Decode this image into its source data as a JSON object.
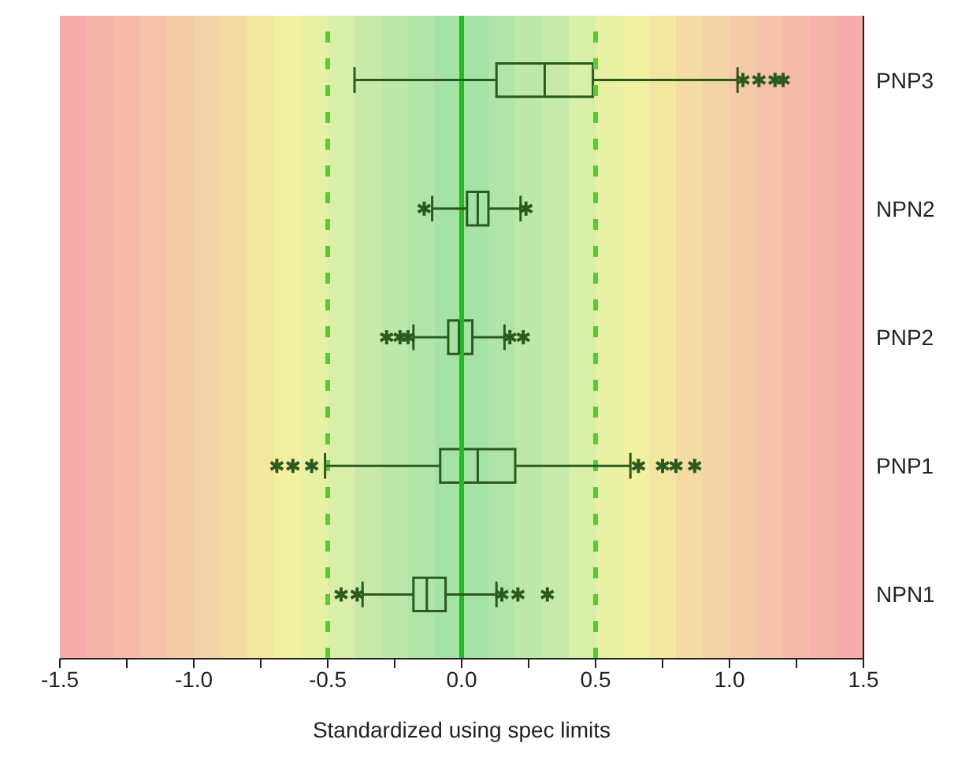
{
  "chart_data": {
    "type": "box",
    "orientation": "horizontal",
    "categories": [
      "PNP3",
      "NPN2",
      "PNP2",
      "PNP1",
      "NPN1"
    ],
    "boxes": [
      {
        "low": -0.4,
        "q1": 0.13,
        "median": 0.31,
        "q3": 0.49,
        "high": 1.03,
        "outliers": [
          1.05,
          1.11,
          1.17,
          1.2
        ]
      },
      {
        "low": -0.11,
        "q1": 0.02,
        "median": 0.06,
        "q3": 0.1,
        "high": 0.22,
        "outliers": [
          -0.14,
          0.24
        ]
      },
      {
        "low": -0.18,
        "q1": -0.05,
        "median": -0.01,
        "q3": 0.04,
        "high": 0.16,
        "outliers": [
          -0.28,
          -0.23,
          -0.2,
          0.18,
          0.23
        ]
      },
      {
        "low": -0.51,
        "q1": -0.08,
        "median": 0.06,
        "q3": 0.2,
        "high": 0.63,
        "outliers": [
          -0.69,
          -0.63,
          -0.56,
          0.66,
          0.75,
          0.8,
          0.87
        ]
      },
      {
        "low": -0.37,
        "q1": -0.18,
        "median": -0.13,
        "q3": -0.06,
        "high": 0.13,
        "outliers": [
          -0.45,
          -0.39,
          0.15,
          0.21,
          0.32
        ]
      }
    ],
    "color": "#2b5a1f",
    "xlim": [
      -1.5,
      1.5
    ],
    "xticks": [
      -1.5,
      {
        "value": -1.25,
        "label": null
      },
      {
        "value": -1.0,
        "label": "-1.0"
      },
      {
        "value": -0.75,
        "label": null
      },
      -0.5,
      {
        "value": -0.25,
        "label": null
      },
      {
        "value": 0.0,
        "label": "0.0"
      },
      {
        "value": 0.25,
        "label": null
      },
      0.5,
      {
        "value": 0.75,
        "label": null
      },
      {
        "value": 1.0,
        "label": "1.0"
      },
      {
        "value": 1.25,
        "label": null
      },
      1.5
    ],
    "xlabel": "Standardized using spec limits",
    "ref_lines": [
      {
        "axis": "x",
        "value": 0,
        "color": "#22bb22",
        "line_style": "solid"
      },
      {
        "axis": "x",
        "value": -0.5,
        "color": "#55cc33",
        "line_style": "dashed"
      },
      {
        "axis": "x",
        "value": 0.5,
        "color": "#55cc33",
        "line_style": "dashed"
      }
    ],
    "bands": [
      {
        "axis": "x",
        "from": -1.5,
        "to": -1.4,
        "color": "#f7abab"
      },
      {
        "axis": "x",
        "from": -1.4,
        "to": -1.3,
        "color": "#f6b3a9"
      },
      {
        "axis": "x",
        "from": -1.3,
        "to": -1.2,
        "color": "#f6bba8"
      },
      {
        "axis": "x",
        "from": -1.2,
        "to": -1.1,
        "color": "#f5c3a8"
      },
      {
        "axis": "x",
        "from": -1.1,
        "to": -1.0,
        "color": "#f5cba7"
      },
      {
        "axis": "x",
        "from": -1.0,
        "to": -0.9,
        "color": "#f4d3a6"
      },
      {
        "axis": "x",
        "from": -0.9,
        "to": -0.8,
        "color": "#f3dca2"
      },
      {
        "axis": "x",
        "from": -0.8,
        "to": -0.7,
        "color": "#f2e6a0"
      },
      {
        "axis": "x",
        "from": -0.7,
        "to": -0.6,
        "color": "#f2f0a0"
      },
      {
        "axis": "x",
        "from": -0.6,
        "to": -0.5,
        "color": "#e8f0a4"
      },
      {
        "axis": "x",
        "from": -0.5,
        "to": -0.4,
        "color": "#d9eea8"
      },
      {
        "axis": "x",
        "from": -0.4,
        "to": -0.3,
        "color": "#c8eaa8"
      },
      {
        "axis": "x",
        "from": -0.3,
        "to": -0.2,
        "color": "#bce8aa"
      },
      {
        "axis": "x",
        "from": -0.2,
        "to": -0.1,
        "color": "#b0e5a8"
      },
      {
        "axis": "x",
        "from": -0.1,
        "to": 0.0,
        "color": "#a5e2a5"
      },
      {
        "axis": "x",
        "from": 0.0,
        "to": 0.1,
        "color": "#a5e2a5"
      },
      {
        "axis": "x",
        "from": 0.1,
        "to": 0.2,
        "color": "#b0e5a8"
      },
      {
        "axis": "x",
        "from": 0.2,
        "to": 0.3,
        "color": "#bce8aa"
      },
      {
        "axis": "x",
        "from": 0.3,
        "to": 0.4,
        "color": "#c8eaa8"
      },
      {
        "axis": "x",
        "from": 0.4,
        "to": 0.5,
        "color": "#d9eea8"
      },
      {
        "axis": "x",
        "from": 0.5,
        "to": 0.6,
        "color": "#e8f0a4"
      },
      {
        "axis": "x",
        "from": 0.6,
        "to": 0.7,
        "color": "#f2f0a0"
      },
      {
        "axis": "x",
        "from": 0.7,
        "to": 0.8,
        "color": "#f2e6a0"
      },
      {
        "axis": "x",
        "from": 0.8,
        "to": 0.9,
        "color": "#f3dca2"
      },
      {
        "axis": "x",
        "from": 0.9,
        "to": 1.0,
        "color": "#f4d3a6"
      },
      {
        "axis": "x",
        "from": 1.0,
        "to": 1.1,
        "color": "#f5cba7"
      },
      {
        "axis": "x",
        "from": 1.1,
        "to": 1.2,
        "color": "#f5c3a8"
      },
      {
        "axis": "x",
        "from": 1.2,
        "to": 1.3,
        "color": "#f6bba8"
      },
      {
        "axis": "x",
        "from": 1.3,
        "to": 1.4,
        "color": "#f6b3a9"
      },
      {
        "axis": "x",
        "from": 1.4,
        "to": 1.5,
        "color": "#f7abab"
      }
    ],
    "grid": false,
    "legend": false
  }
}
